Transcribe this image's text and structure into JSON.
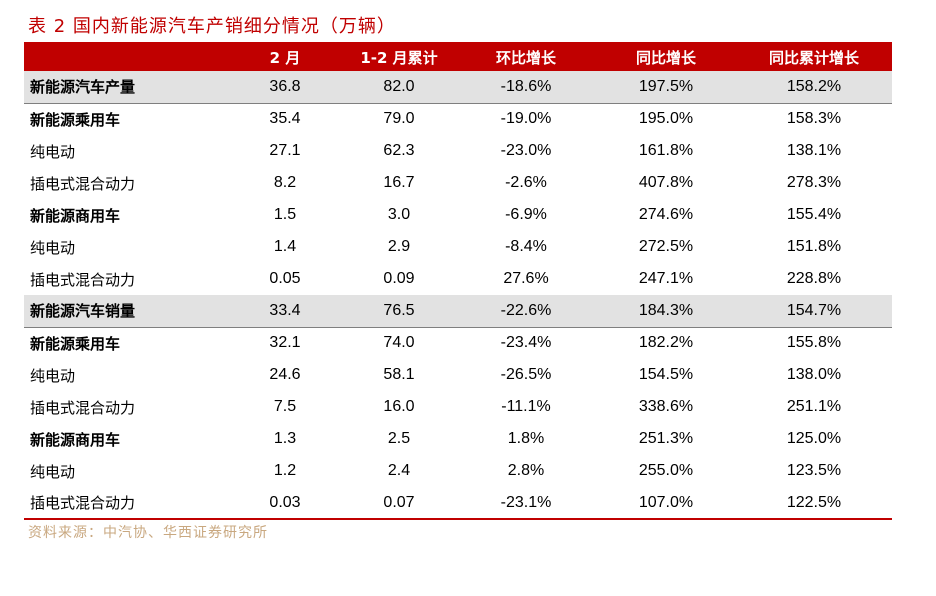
{
  "title": "表 2 国内新能源汽车产销细分情况（万辆）",
  "header": [
    "",
    "2 月",
    "1-2 月累计",
    "环比增长",
    "同比增长",
    "同比累计增长"
  ],
  "rows": [
    {
      "label": "新能源汽车产量",
      "bold": true,
      "gray": true,
      "values": [
        "36.8",
        "82.0",
        "-18.6%",
        "197.5%",
        "158.2%"
      ]
    },
    {
      "label": "新能源乘用车",
      "bold": true,
      "gray": false,
      "values": [
        "35.4",
        "79.0",
        "-19.0%",
        "195.0%",
        "158.3%"
      ]
    },
    {
      "label": "纯电动",
      "bold": false,
      "gray": false,
      "values": [
        "27.1",
        "62.3",
        "-23.0%",
        "161.8%",
        "138.1%"
      ]
    },
    {
      "label": "插电式混合动力",
      "bold": false,
      "gray": false,
      "values": [
        "8.2",
        "16.7",
        "-2.6%",
        "407.8%",
        "278.3%"
      ]
    },
    {
      "label": "新能源商用车",
      "bold": true,
      "gray": false,
      "values": [
        "1.5",
        "3.0",
        "-6.9%",
        "274.6%",
        "155.4%"
      ]
    },
    {
      "label": "纯电动",
      "bold": false,
      "gray": false,
      "values": [
        "1.4",
        "2.9",
        "-8.4%",
        "272.5%",
        "151.8%"
      ]
    },
    {
      "label": "插电式混合动力",
      "bold": false,
      "gray": false,
      "values": [
        "0.05",
        "0.09",
        "27.6%",
        "247.1%",
        "228.8%"
      ]
    },
    {
      "label": "新能源汽车销量",
      "bold": true,
      "gray": true,
      "values": [
        "33.4",
        "76.5",
        "-22.6%",
        "184.3%",
        "154.7%"
      ]
    },
    {
      "label": "新能源乘用车",
      "bold": true,
      "gray": false,
      "values": [
        "32.1",
        "74.0",
        "-23.4%",
        "182.2%",
        "155.8%"
      ]
    },
    {
      "label": "纯电动",
      "bold": false,
      "gray": false,
      "values": [
        "24.6",
        "58.1",
        "-26.5%",
        "154.5%",
        "138.0%"
      ]
    },
    {
      "label": "插电式混合动力",
      "bold": false,
      "gray": false,
      "values": [
        "7.5",
        "16.0",
        "-11.1%",
        "338.6%",
        "251.1%"
      ]
    },
    {
      "label": "新能源商用车",
      "bold": true,
      "gray": false,
      "values": [
        "1.3",
        "2.5",
        "1.8%",
        "251.3%",
        "125.0%"
      ]
    },
    {
      "label": "纯电动",
      "bold": false,
      "gray": false,
      "values": [
        "1.2",
        "2.4",
        "2.8%",
        "255.0%",
        "123.5%"
      ]
    },
    {
      "label": "插电式混合动力",
      "bold": false,
      "gray": false,
      "values": [
        "0.03",
        "0.07",
        "-23.1%",
        "107.0%",
        "122.5%"
      ]
    }
  ],
  "source": "资料来源：中汽协、华西证券研究所"
}
